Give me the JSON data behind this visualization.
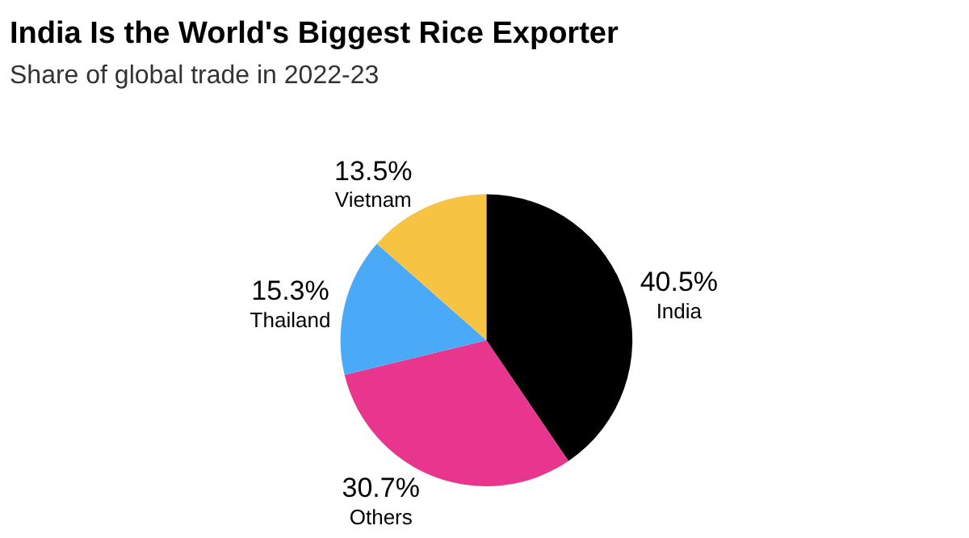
{
  "chart_data": {
    "type": "pie",
    "title": "India Is the World's Biggest Rice Exporter",
    "subtitle": "Share of global trade in 2022-23",
    "categories": [
      "India",
      "Others",
      "Thailand",
      "Vietnam"
    ],
    "values": [
      40.5,
      30.7,
      15.3,
      13.5
    ],
    "value_labels": [
      "40.5%",
      "30.7%",
      "15.3%",
      "13.5%"
    ],
    "colors": [
      "#000000",
      "#e8368f",
      "#4aaaf7",
      "#f6c342"
    ],
    "legend": false
  }
}
